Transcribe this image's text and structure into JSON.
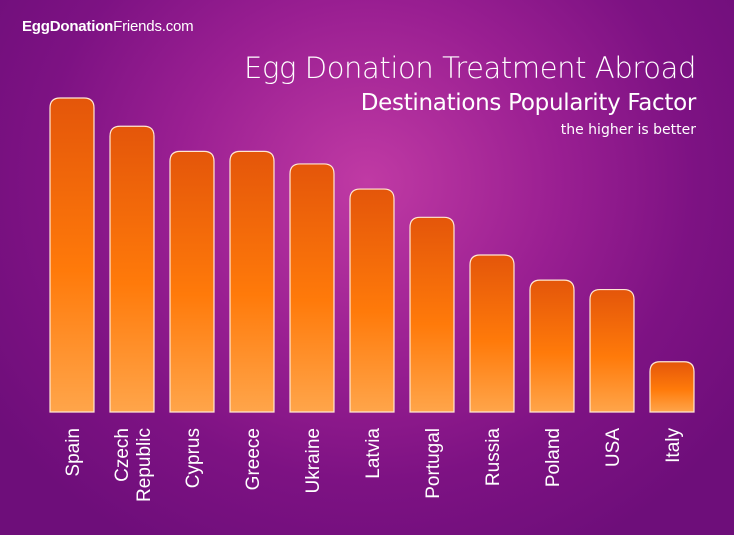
{
  "brand": {
    "bold": "EggDonation",
    "regular": "Friends.com"
  },
  "chart_data": {
    "type": "bar",
    "title": "Egg Donation Treatment Abroad",
    "subtitle": "Destinations Popularity Factor",
    "note": "the higher is better",
    "categories": [
      "Spain",
      "Czech Republic",
      "Cyprus",
      "Greece",
      "Ukraine",
      "Latvia",
      "Portugal",
      "Russia",
      "Poland",
      "USA",
      "Italy"
    ],
    "category_lines": [
      [
        "Spain"
      ],
      [
        "Czech",
        "Republic"
      ],
      [
        "Cyprus"
      ],
      [
        "Greece"
      ],
      [
        "Ukraine"
      ],
      [
        "Latvia"
      ],
      [
        "Portugal"
      ],
      [
        "Russia"
      ],
      [
        "Poland"
      ],
      [
        "USA"
      ],
      [
        "Italy"
      ]
    ],
    "values": [
      100,
      91,
      83,
      83,
      79,
      71,
      62,
      50,
      42,
      39,
      16
    ],
    "ylim": [
      0,
      100
    ],
    "xlabel": "",
    "ylabel": "",
    "grid": false,
    "legend": "none"
  },
  "colors": {
    "bar_top": "#e4560a",
    "bar_mid": "#ff7a0a",
    "bar_bottom": "#ffa54a",
    "bar_edge": "#ffe7d2",
    "text": "#ffffff"
  }
}
